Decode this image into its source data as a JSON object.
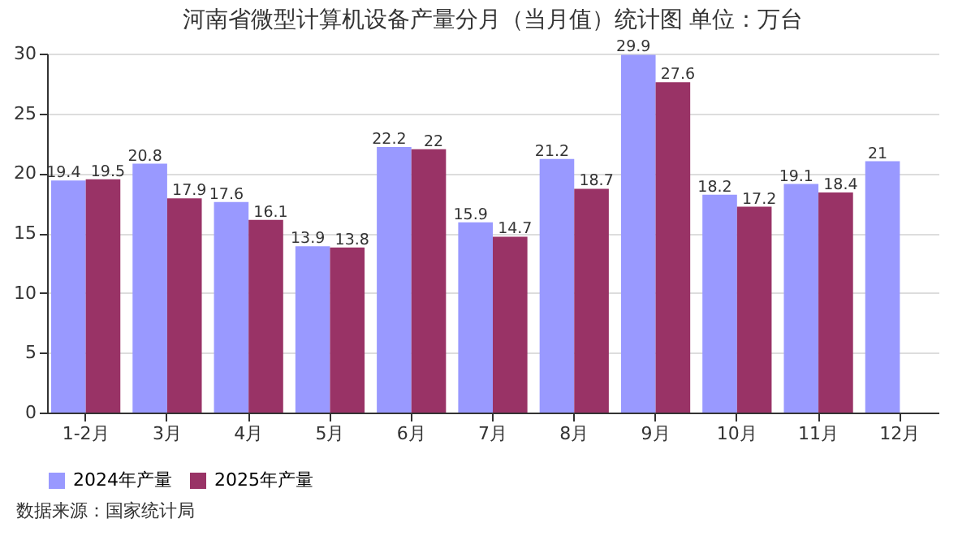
{
  "chart_data": {
    "type": "bar",
    "title": "河南省微型计算机设备产量分月（当月值）统计图 单位：万台",
    "categories": [
      "1-2月",
      "3月",
      "4月",
      "5月",
      "6月",
      "7月",
      "8月",
      "9月",
      "10月",
      "11月",
      "12月"
    ],
    "series": [
      {
        "name": "2024年产量",
        "color": "#9999ff",
        "values": [
          19.4,
          20.8,
          17.6,
          13.9,
          22.2,
          15.9,
          21.2,
          29.9,
          18.2,
          19.1,
          21
        ]
      },
      {
        "name": "2025年产量",
        "color": "#993366",
        "values": [
          19.5,
          17.9,
          16.1,
          13.8,
          22,
          14.7,
          18.7,
          27.6,
          17.2,
          18.4,
          null
        ]
      }
    ],
    "ylim": [
      0,
      30
    ],
    "yticks": [
      0,
      5,
      10,
      15,
      20,
      25,
      30
    ],
    "grid": "y",
    "legend": "bottom",
    "data_labels": true,
    "annotations": [
      "数据来源：国家统计局"
    ]
  }
}
